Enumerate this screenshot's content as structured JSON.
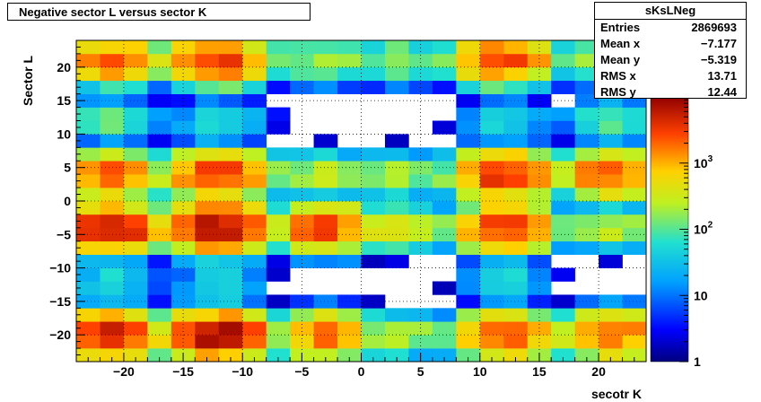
{
  "chart_data": {
    "type": "heatmap",
    "title": "Negative sector L versus sector K",
    "xlabel": "secotr K",
    "ylabel": "Sector L",
    "xlim": [
      -24,
      24
    ],
    "ylim": [
      -24,
      24
    ],
    "x_ticks": [
      "−20",
      "−15",
      "−10",
      "−5",
      "0",
      "5",
      "10",
      "15",
      "20"
    ],
    "y_ticks": [
      "20",
      "15",
      "10",
      "5",
      "0",
      "−5",
      "−10",
      "−15",
      "−20"
    ],
    "x_tick_values": [
      -20,
      -15,
      -10,
      -5,
      0,
      5,
      10,
      15,
      20
    ],
    "y_tick_values": [
      20,
      15,
      10,
      5,
      0,
      -5,
      -10,
      -15,
      -20
    ],
    "z_scale": "log",
    "zlim": [
      1,
      10000
    ],
    "z_ticks": [
      {
        "value": 1,
        "base": "1",
        "exp": ""
      },
      {
        "value": 10,
        "base": "10",
        "exp": ""
      },
      {
        "value": 100,
        "base": "10",
        "exp": "2"
      },
      {
        "value": 1000,
        "base": "10",
        "exp": "3"
      }
    ],
    "grid": true,
    "colormap": "rainbow",
    "clusters": [
      {
        "cx": -21,
        "cy": 21,
        "peak": 2200
      },
      {
        "cx": -12,
        "cy": 21,
        "peak": 3500
      },
      {
        "cx": -3,
        "cy": 21,
        "peak": 300
      },
      {
        "cx": 3,
        "cy": 21,
        "peak": 250
      },
      {
        "cx": 12,
        "cy": 21,
        "peak": 3000
      },
      {
        "cx": 21,
        "cy": 21,
        "peak": 400
      },
      {
        "cx": -21,
        "cy": 12,
        "peak": 120
      },
      {
        "cx": -12,
        "cy": 12,
        "peak": 80
      },
      {
        "cx": 12,
        "cy": 12,
        "peak": 70
      },
      {
        "cx": 21,
        "cy": 12,
        "peak": 120
      },
      {
        "cx": -21,
        "cy": 4,
        "peak": 2500
      },
      {
        "cx": -12,
        "cy": 4,
        "peak": 4000
      },
      {
        "cx": -3,
        "cy": 4,
        "peak": 300
      },
      {
        "cx": 3,
        "cy": 4,
        "peak": 250
      },
      {
        "cx": 12,
        "cy": 4,
        "peak": 4000
      },
      {
        "cx": 21,
        "cy": 4,
        "peak": 2500
      },
      {
        "cx": -21,
        "cy": -4,
        "peak": 6000
      },
      {
        "cx": -12,
        "cy": -4,
        "peak": 8000
      },
      {
        "cx": -3,
        "cy": -4,
        "peak": 3000
      },
      {
        "cx": 3,
        "cy": -4,
        "peak": 400
      },
      {
        "cx": 12,
        "cy": -4,
        "peak": 4000
      },
      {
        "cx": 21,
        "cy": -4,
        "peak": 300
      },
      {
        "cx": -21,
        "cy": -12,
        "peak": 60
      },
      {
        "cx": -12,
        "cy": -12,
        "peak": 50
      },
      {
        "cx": 12,
        "cy": -12,
        "peak": 60
      },
      {
        "cx": -21,
        "cy": -20,
        "peak": 5000
      },
      {
        "cx": -12,
        "cy": -20,
        "peak": 8000
      },
      {
        "cx": -3,
        "cy": -20,
        "peak": 2000
      },
      {
        "cx": 3,
        "cy": -20,
        "peak": 300
      },
      {
        "cx": 12,
        "cy": -20,
        "peak": 3000
      },
      {
        "cx": 21,
        "cy": -20,
        "peak": 2500
      }
    ]
  },
  "stats": {
    "name": "sKsLNeg",
    "rows": [
      {
        "key": "Entries",
        "value": "2869693"
      },
      {
        "key": "Mean x",
        "value": "−7.177"
      },
      {
        "key": "Mean y",
        "value": "−5.319"
      },
      {
        "key": "RMS x",
        "value": "13.71"
      },
      {
        "key": "RMS y",
        "value": "12.44"
      }
    ]
  }
}
